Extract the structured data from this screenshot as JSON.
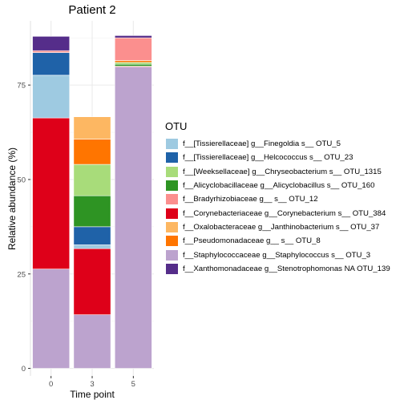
{
  "chart_data": {
    "type": "bar",
    "stacked": true,
    "title": "Patient 2",
    "xlabel": "Time point",
    "ylabel": "Relative abundance (%)",
    "ylim": [
      -2,
      92
    ],
    "yticks": [
      0,
      25,
      50,
      75
    ],
    "categories": [
      "0",
      "3",
      "5"
    ],
    "grid": true,
    "legend_title": "OTU",
    "legend_position": "right",
    "series": [
      {
        "name": "f__Staphylococcaceae g__Staphylococcus s__ OTU_3",
        "color": "#bca3ce",
        "values": [
          26.3,
          14.2,
          79.8
        ]
      },
      {
        "name": "f__Corynebacteriaceae g__Corynebacterium s__ OTU_384",
        "color": "#de0019",
        "values": [
          40.0,
          17.5,
          0.2
        ]
      },
      {
        "name": "f__[Tissierellaceae] g__Finegoldia s__ OTU_5",
        "color": "#9ecae1",
        "values": [
          11.3,
          1.0,
          0.0
        ]
      },
      {
        "name": "f__[Tissierellaceae] g__Helcococcus s__ OTU_23",
        "color": "#1f62a8",
        "values": [
          6.0,
          4.8,
          0.0
        ]
      },
      {
        "name": "f__Alicyclobacillaceae g__Alicyclobacillus s__ OTU_160",
        "color": "#2e9423",
        "values": [
          0.0,
          8.2,
          0.5
        ]
      },
      {
        "name": "f__[Weeksellaceae] g__Chryseobacterium s__ OTU_1315",
        "color": "#a8dc7a",
        "values": [
          0.0,
          8.3,
          0.5
        ]
      },
      {
        "name": "f__Pseudomonadaceae g__ s__ OTU_8",
        "color": "#ff7500",
        "values": [
          0.0,
          6.7,
          0.5
        ]
      },
      {
        "name": "f__Oxalobacteraceae g__Janthinobacterium s__ OTU_37",
        "color": "#fdb762",
        "values": [
          0.0,
          5.9,
          0.0
        ]
      },
      {
        "name": "f__Bradyrhizobiaceae g__ s__ OTU_12",
        "color": "#fb8f8e",
        "values": [
          0.5,
          0.0,
          6.0
        ]
      },
      {
        "name": "f__Xanthomonadaceae g__Stenotrophomonas NA OTU_139",
        "color": "#552d8a",
        "values": [
          3.8,
          0.0,
          0.6
        ]
      }
    ],
    "legend_order": [
      "f__[Tissierellaceae] g__Finegoldia s__ OTU_5",
      "f__[Tissierellaceae] g__Helcococcus s__ OTU_23",
      "f__[Weeksellaceae] g__Chryseobacterium s__ OTU_1315",
      "f__Alicyclobacillaceae g__Alicyclobacillus s__ OTU_160",
      "f__Bradyrhizobiaceae g__ s__ OTU_12",
      "f__Corynebacteriaceae g__Corynebacterium s__ OTU_384",
      "f__Oxalobacteraceae g__Janthinobacterium s__ OTU_37",
      "f__Pseudomonadaceae g__ s__ OTU_8",
      "f__Staphylococcaceae g__Staphylococcus s__ OTU_3",
      "f__Xanthomonadaceae g__Stenotrophomonas NA OTU_139"
    ]
  }
}
